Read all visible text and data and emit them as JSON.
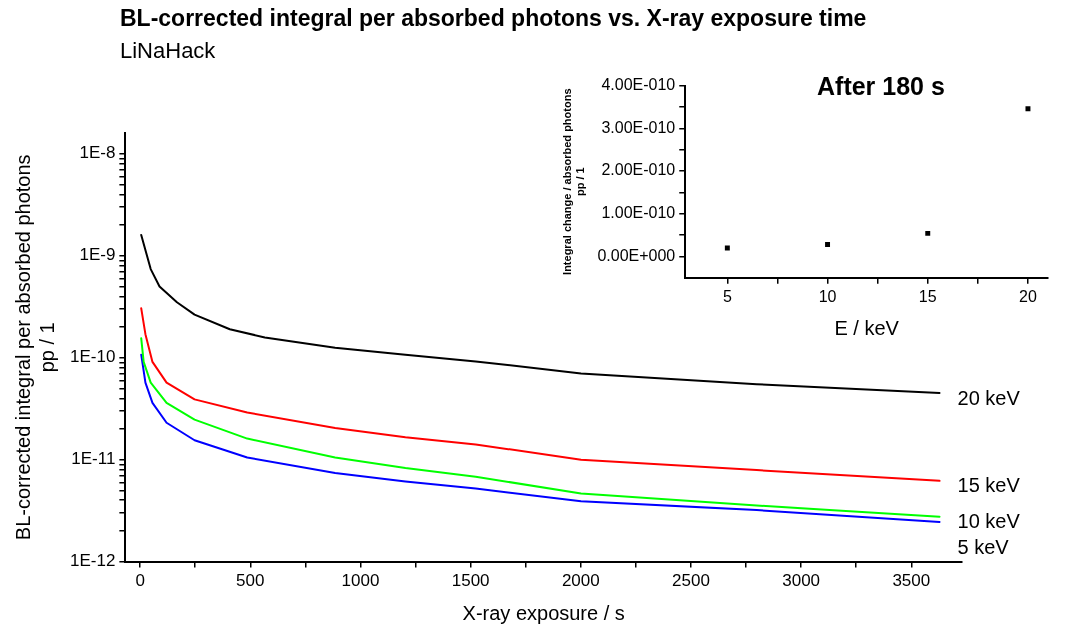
{
  "chart_data": [
    {
      "type": "line",
      "title": "BL-corrected integral per absorbed photons vs. X-ray exposure time",
      "subtitle": "LiNaHack",
      "xlabel": "X-ray exposure / s",
      "ylabel": "BL-corrected integral per absorbed photons\npp / 1",
      "log": "y",
      "marker": "none",
      "line_style": "solid",
      "xlim": [
        -67,
        3730
      ],
      "xticks": [
        0,
        {
          "value": 250,
          "label": null
        },
        500,
        {
          "value": 750,
          "label": null
        },
        1000,
        {
          "value": 1250,
          "label": null
        },
        1500,
        {
          "value": 1750,
          "label": null
        },
        2000,
        {
          "value": 2250,
          "label": null
        },
        2500,
        {
          "value": 2750,
          "label": null
        },
        3000,
        {
          "value": 3250,
          "label": null
        },
        3500
      ],
      "ylim": [
        1e-12,
        1.6e-08
      ],
      "yticks": [
        {
          "value": 1e-12,
          "label": "1E-12"
        },
        {
          "value": 2e-12,
          "label": null
        },
        {
          "value": 3e-12,
          "label": null
        },
        {
          "value": 4e-12,
          "label": null
        },
        {
          "value": 5e-12,
          "label": null
        },
        {
          "value": 6e-12,
          "label": null
        },
        {
          "value": 7e-12,
          "label": null
        },
        {
          "value": 8e-12,
          "label": null
        },
        {
          "value": 9e-12,
          "label": null
        },
        {
          "value": 1e-11,
          "label": "1E-11"
        },
        {
          "value": 2e-11,
          "label": null
        },
        {
          "value": 3e-11,
          "label": null
        },
        {
          "value": 4e-11,
          "label": null
        },
        {
          "value": 5e-11,
          "label": null
        },
        {
          "value": 6e-11,
          "label": null
        },
        {
          "value": 7e-11,
          "label": null
        },
        {
          "value": 8e-11,
          "label": null
        },
        {
          "value": 9e-11,
          "label": null
        },
        {
          "value": 1e-10,
          "label": "1E-10"
        },
        {
          "value": 2e-10,
          "label": null
        },
        {
          "value": 3e-10,
          "label": null
        },
        {
          "value": 4e-10,
          "label": null
        },
        {
          "value": 5e-10,
          "label": null
        },
        {
          "value": 6e-10,
          "label": null
        },
        {
          "value": 7e-10,
          "label": null
        },
        {
          "value": 8e-10,
          "label": null
        },
        {
          "value": 9e-10,
          "label": null
        },
        {
          "value": 1e-09,
          "label": "1E-9"
        },
        {
          "value": 2e-09,
          "label": null
        },
        {
          "value": 3e-09,
          "label": null
        },
        {
          "value": 4e-09,
          "label": null
        },
        {
          "value": 5e-09,
          "label": null
        },
        {
          "value": 6e-09,
          "label": null
        },
        {
          "value": 7e-09,
          "label": null
        },
        {
          "value": 8e-09,
          "label": null
        },
        {
          "value": 9e-09,
          "label": null
        },
        {
          "value": 1e-08,
          "label": "1E-8"
        }
      ],
      "series": [
        {
          "name": "20 keV",
          "color": "#000000",
          "x": [
            5,
            48,
            88,
            167,
            247,
            407,
            566,
            885,
            1204,
            1523,
            2001,
            2798,
            3628
          ],
          "values": [
            1.6e-09,
            7.4e-10,
            5e-10,
            3.5e-10,
            2.65e-10,
            1.9e-10,
            1.58e-10,
            1.25e-10,
            1.07e-10,
            9.2e-11,
            7e-11,
            5.5e-11,
            4.5e-11
          ]
        },
        {
          "name": "15 keV",
          "color": "#ff0000",
          "x": [
            5,
            24,
            56,
            120,
            247,
            486,
            885,
            1204,
            1523,
            2001,
            2798,
            3628
          ],
          "values": [
            3.05e-10,
            1.7e-10,
            9.1e-11,
            5.7e-11,
            3.9e-11,
            2.9e-11,
            2.04e-11,
            1.66e-11,
            1.41e-11,
            1e-11,
            7.9e-12,
            6.2e-12
          ]
        },
        {
          "name": "10 keV",
          "color": "#00ff00",
          "x": [
            5,
            16,
            48,
            120,
            247,
            486,
            885,
            1204,
            1523,
            2001,
            2798,
            3628
          ],
          "values": [
            1.55e-10,
            9.1e-11,
            5.7e-11,
            3.6e-11,
            2.47e-11,
            1.61e-11,
            1.05e-11,
            8.3e-12,
            6.8e-12,
            4.65e-12,
            3.55e-12,
            2.75e-12
          ]
        },
        {
          "name": "5 keV",
          "color": "#0000ff",
          "x": [
            5,
            24,
            56,
            120,
            247,
            486,
            885,
            1204,
            1523,
            2001,
            2798,
            3628
          ],
          "values": [
            1.07e-10,
            5.7e-11,
            3.6e-11,
            2.3e-11,
            1.55e-11,
            1.05e-11,
            7.4e-12,
            6.1e-12,
            5.2e-12,
            3.9e-12,
            3.2e-12,
            2.45e-12
          ]
        }
      ]
    },
    {
      "type": "scatter",
      "title": "After 180 s",
      "xlabel": "E / keV",
      "ylabel": "Integral change / absorbed photons\npp / 1",
      "marker": "square",
      "xlim": [
        2.9,
        21
      ],
      "xticks": [
        5,
        {
          "value": 7.5,
          "label": null
        },
        10,
        {
          "value": 12.5,
          "label": null
        },
        15,
        {
          "value": 17.5,
          "label": null
        },
        20
      ],
      "ylim": [
        -5e-11,
        4e-10
      ],
      "yticks": [
        {
          "value": 0,
          "label": "0.00E+000"
        },
        {
          "value": 5e-11,
          "label": null
        },
        {
          "value": 1e-10,
          "label": "1.00E-010"
        },
        {
          "value": 1.5e-10,
          "label": null
        },
        {
          "value": 2e-10,
          "label": "2.00E-010"
        },
        {
          "value": 2.5e-10,
          "label": null
        },
        {
          "value": 3e-10,
          "label": "3.00E-010"
        },
        {
          "value": 3.5e-10,
          "label": null
        },
        {
          "value": 4e-10,
          "label": "4.00E-010"
        }
      ],
      "series": [
        {
          "color": "#000000",
          "x": [
            5,
            10,
            15,
            20
          ],
          "values": [
            2e-11,
            2.8e-11,
            5.4e-11,
            3.46e-10
          ]
        }
      ]
    }
  ]
}
